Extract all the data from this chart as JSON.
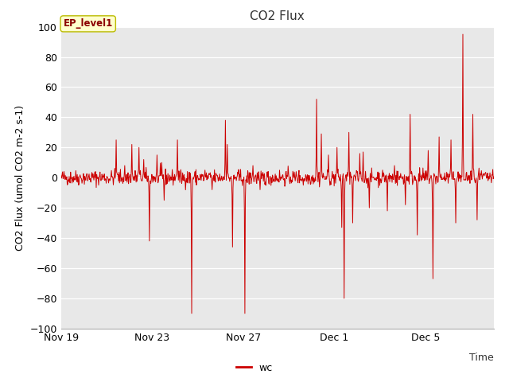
{
  "title": "CO2 Flux",
  "ylabel": "CO2 Flux (umol CO2 m-2 s-1)",
  "xlabel": "Time",
  "ylim": [
    -100,
    100
  ],
  "xlim": [
    0,
    19
  ],
  "legend_label": "wc",
  "ep_label": "EP_level1",
  "line_color": "#cc0000",
  "plot_bg_color": "#e8e8e8",
  "fig_bg_color": "#ffffff",
  "grid_color": "#ffffff",
  "title_fontsize": 11,
  "axis_fontsize": 9,
  "tick_fontsize": 9,
  "yticks": [
    -100,
    -80,
    -60,
    -40,
    -20,
    0,
    20,
    40,
    60,
    80,
    100
  ],
  "xtick_positions": [
    0,
    4,
    8,
    12,
    16
  ],
  "xtick_labels": [
    "Nov 19",
    "Nov 23",
    "Nov 27",
    "Dec 1",
    "Dec 5"
  ]
}
